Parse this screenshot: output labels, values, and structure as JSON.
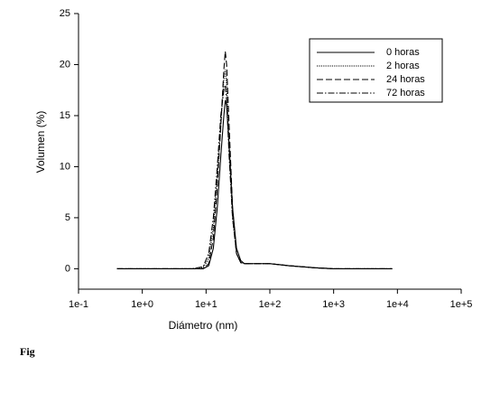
{
  "chart_data": {
    "type": "line",
    "x_label": "Diámetro (nm)",
    "y_label": "Volumen (%)",
    "log_x": true,
    "xlim": [
      0.1,
      100000
    ],
    "xticks": [
      {
        "value": 0.1,
        "label": "1e-1"
      },
      {
        "value": 1,
        "label": "1e+0"
      },
      {
        "value": 10,
        "label": "1e+1"
      },
      {
        "value": 100,
        "label": "1e+2"
      },
      {
        "value": 1000,
        "label": "1e+3"
      },
      {
        "value": 10000,
        "label": "1e+4"
      },
      {
        "value": 100000,
        "label": "1e+5"
      }
    ],
    "ylim": [
      -2,
      25
    ],
    "yticks": [
      0,
      5,
      10,
      15,
      20,
      25
    ],
    "x": [
      0.4,
      1,
      3,
      6,
      9,
      11,
      13,
      15,
      17,
      19,
      20,
      21,
      23,
      26,
      30,
      35,
      40,
      50,
      70,
      100,
      200,
      500,
      1000,
      3000,
      8300
    ],
    "series": [
      {
        "name": "0 horas",
        "color": "#000000",
        "dash": "solid",
        "values": [
          0,
          0,
          0,
          0,
          0,
          0.3,
          2,
          6,
          11,
          15,
          16.5,
          16,
          12,
          6,
          2,
          0.8,
          0.5,
          0.5,
          0.5,
          0.5,
          0.3,
          0.1,
          0,
          0,
          0
        ]
      },
      {
        "name": "2 horas",
        "color": "#000000",
        "dash": "dotted",
        "values": [
          0,
          0,
          0,
          0,
          0.1,
          1,
          4,
          9,
          14,
          18.5,
          19.5,
          18,
          12,
          5,
          1.5,
          0.6,
          0.5,
          0.5,
          0.5,
          0.5,
          0.3,
          0.1,
          0,
          0,
          0
        ]
      },
      {
        "name": "24 horas",
        "color": "#000000",
        "dash": "dashed",
        "values": [
          0,
          0,
          0,
          0,
          0,
          0.5,
          3,
          8,
          14,
          19.5,
          21.3,
          20,
          14,
          6,
          1.5,
          0.6,
          0.5,
          0.5,
          0.5,
          0.5,
          0.3,
          0.1,
          0,
          0,
          0
        ]
      },
      {
        "name": "72 horas",
        "color": "#000000",
        "dash": "dashdot",
        "values": [
          0,
          0,
          0,
          0,
          0.2,
          1.5,
          5,
          10,
          15,
          17.5,
          18,
          16.5,
          11,
          5,
          1.5,
          0.6,
          0.5,
          0.5,
          0.5,
          0.5,
          0.3,
          0.1,
          0,
          0,
          0
        ]
      }
    ],
    "legend": "top-right"
  },
  "caption_fragment": "Fig"
}
